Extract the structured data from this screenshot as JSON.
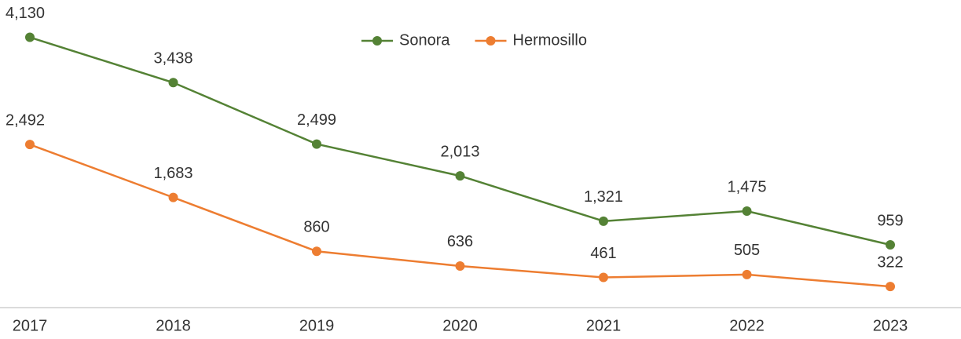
{
  "chart_data": {
    "type": "line",
    "categories": [
      "2017",
      "2018",
      "2019",
      "2020",
      "2021",
      "2022",
      "2023"
    ],
    "series": [
      {
        "name": "Sonora",
        "color": "#548235",
        "values": [
          4130,
          3438,
          2499,
          2013,
          1321,
          1475,
          959
        ],
        "value_labels": [
          "4,130",
          "3,438",
          "2,499",
          "2,013",
          "1,321",
          "1,475",
          "959"
        ]
      },
      {
        "name": "Hermosillo",
        "color": "#ed7d31",
        "values": [
          2492,
          1683,
          860,
          636,
          461,
          505,
          322
        ],
        "value_labels": [
          "2,492",
          "1,683",
          "860",
          "636",
          "461",
          "505",
          "322"
        ]
      }
    ],
    "ylim": [
      0,
      4700
    ],
    "legend": "top"
  }
}
